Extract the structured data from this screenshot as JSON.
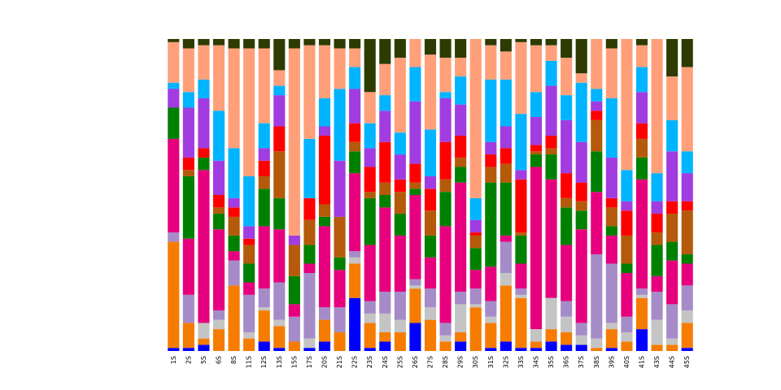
{
  "chart_data": {
    "type": "bar",
    "stacked": true,
    "categories": [
      "1S",
      "2S",
      "5S",
      "6S",
      "8S",
      "11S",
      "12S",
      "13S",
      "15S",
      "17S",
      "20S",
      "21S",
      "22S",
      "23S",
      "24S",
      "25S",
      "26S",
      "27S",
      "28S",
      "29S",
      "30S",
      "31S",
      "32S",
      "33S",
      "34S",
      "35S",
      "36S",
      "37S",
      "38S",
      "39S",
      "40S",
      "41S",
      "43S",
      "44S",
      "45S"
    ],
    "ylim": [
      0,
      100
    ],
    "series": [
      {
        "color": "#0000ff",
        "values": [
          1,
          1,
          2,
          0,
          0,
          0,
          3,
          1,
          0,
          1,
          3,
          0,
          17,
          1,
          3,
          0,
          9,
          0,
          0,
          3,
          0,
          1,
          3,
          1,
          1,
          3,
          2,
          2,
          0,
          1,
          0,
          7,
          0,
          0,
          1
        ]
      },
      {
        "color": "#f57c00",
        "values": [
          34,
          8,
          2,
          7,
          21,
          4,
          10,
          7,
          3,
          0,
          7,
          6,
          11,
          8,
          3,
          6,
          11,
          10,
          3,
          3,
          14,
          8,
          18,
          16,
          2,
          4,
          4,
          0,
          1,
          6,
          3,
          10,
          2,
          2,
          8
        ]
      },
      {
        "color": "#c4c4c4",
        "values": [
          0,
          0,
          5,
          3,
          0,
          2,
          1,
          2,
          0,
          3,
          0,
          0,
          2,
          3,
          6,
          4,
          1,
          4,
          2,
          9,
          1,
          2,
          4,
          1,
          4,
          10,
          5,
          3,
          3,
          2,
          3,
          1,
          8,
          2,
          4
        ]
      },
      {
        "color": "#a58cc8",
        "values": [
          3,
          9,
          0,
          3,
          8,
          12,
          6,
          12,
          8,
          21,
          4,
          8,
          2,
          4,
          7,
          9,
          2,
          6,
          4,
          4,
          5,
          5,
          10,
          2,
          0,
          0,
          5,
          4,
          27,
          19,
          5,
          2,
          9,
          11,
          8
        ]
      },
      {
        "color": "#e6007e",
        "values": [
          30,
          18,
          49,
          26,
          3,
          4,
          20,
          17,
          4,
          3,
          26,
          12,
          25,
          18,
          27,
          18,
          27,
          10,
          31,
          35,
          6,
          11,
          2,
          8,
          52,
          38,
          18,
          30,
          20,
          9,
          14,
          35,
          5,
          14,
          7
        ]
      },
      {
        "color": "#008000",
        "values": [
          10,
          20,
          4,
          5,
          5,
          6,
          12,
          10,
          9,
          6,
          3,
          4,
          7,
          15,
          4,
          7,
          2,
          7,
          11,
          5,
          7,
          27,
          17,
          9,
          4,
          8,
          12,
          6,
          13,
          3,
          3,
          7,
          10,
          6,
          3
        ]
      },
      {
        "color": "#b45a0a",
        "values": [
          0,
          2,
          0,
          2,
          6,
          6,
          4,
          15,
          10,
          8,
          4,
          13,
          3,
          2,
          4,
          7,
          2,
          8,
          4,
          3,
          4,
          5,
          6,
          1,
          1,
          2,
          3,
          3,
          10,
          6,
          9,
          6,
          4,
          9,
          14
        ]
      },
      {
        "color": "#ff0000",
        "values": [
          0,
          4,
          3,
          4,
          3,
          2,
          5,
          8,
          0,
          7,
          22,
          0,
          6,
          8,
          13,
          4,
          6,
          7,
          12,
          7,
          1,
          4,
          5,
          17,
          2,
          4,
          8,
          6,
          3,
          3,
          8,
          5,
          6,
          4,
          3
        ]
      },
      {
        "color": "#a13ce0",
        "values": [
          6,
          16,
          16,
          11,
          3,
          4,
          4,
          10,
          3,
          0,
          3,
          18,
          11,
          6,
          10,
          8,
          20,
          4,
          14,
          10,
          4,
          4,
          7,
          3,
          9,
          16,
          17,
          13,
          3,
          13,
          3,
          10,
          4,
          16,
          9
        ]
      },
      {
        "color": "#00b4ff",
        "values": [
          2,
          5,
          6,
          16,
          16,
          16,
          8,
          3,
          0,
          19,
          9,
          23,
          7,
          8,
          5,
          7,
          11,
          15,
          2,
          9,
          7,
          20,
          15,
          18,
          8,
          8,
          8,
          19,
          4,
          19,
          10,
          8,
          9,
          10,
          7
        ]
      },
      {
        "color": "#ffa07a",
        "values": [
          13,
          14,
          11,
          21,
          32,
          41,
          24,
          5,
          60,
          30,
          17,
          13,
          6,
          10,
          10,
          24,
          9,
          24,
          11,
          6,
          51,
          11,
          9,
          23,
          15,
          5,
          12,
          3,
          16,
          16,
          42,
          7,
          43,
          14,
          27
        ]
      },
      {
        "color": "#2e3b00",
        "values": [
          1,
          3,
          2,
          2,
          3,
          3,
          3,
          10,
          3,
          2,
          2,
          3,
          3,
          17,
          8,
          6,
          0,
          5,
          6,
          6,
          0,
          2,
          4,
          1,
          2,
          2,
          6,
          11,
          0,
          3,
          0,
          2,
          0,
          12,
          9
        ]
      }
    ]
  }
}
